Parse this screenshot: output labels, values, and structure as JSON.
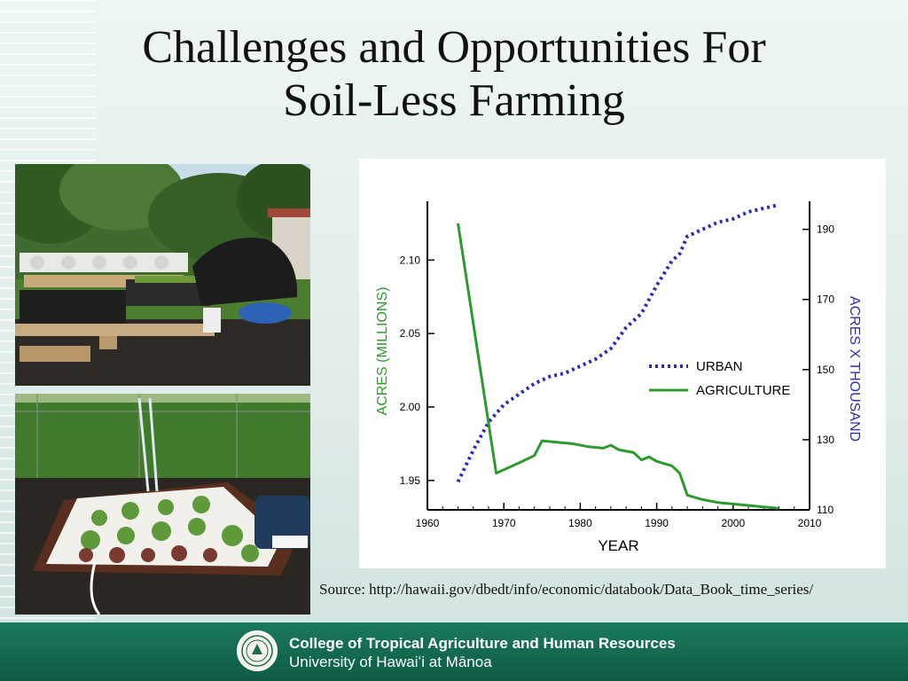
{
  "slide": {
    "title_line1": "Challenges and Opportunities For",
    "title_line2": "Soil-Less Farming",
    "source": "Source: http://hawaii.gov/dbedt/info/economic/databook/Data_Book_time_series/"
  },
  "footer": {
    "line1": "College of Tropical Agriculture and Human Resources",
    "line2": "University of Hawaiʻi at Mānoa"
  },
  "chart_data": {
    "type": "line",
    "title": "",
    "xlabel": "YEAR",
    "ylabel_left": "ACRES (MILLIONS)",
    "ylabel_right": "ACRES X THOUSAND",
    "xlim": [
      1960,
      2010
    ],
    "ylim_left": [
      1.93,
      2.14
    ],
    "ylim_right": [
      110,
      198
    ],
    "x_ticks": [
      1960,
      1970,
      1980,
      1990,
      2000,
      2010
    ],
    "y_ticks_left": [
      1.95,
      2.0,
      2.05,
      2.1
    ],
    "y_ticks_left_labels": [
      "1.95",
      "2.00",
      "2.05",
      "2.10"
    ],
    "y_ticks_right": [
      110,
      130,
      150,
      170,
      190
    ],
    "legend_position": "middle-right",
    "series": [
      {
        "name": "URBAN",
        "axis": "right",
        "color": "#2b2fb0",
        "style": "dotted",
        "x": [
          1964,
          1966,
          1968,
          1970,
          1972,
          1974,
          1976,
          1978,
          1980,
          1982,
          1984,
          1986,
          1988,
          1990,
          1992,
          1993,
          1994,
          1996,
          1998,
          2000,
          2002,
          2004,
          2006
        ],
        "y": [
          118,
          127,
          135,
          140,
          143,
          146,
          148,
          149,
          151,
          153,
          156,
          162,
          166,
          174,
          181,
          183,
          188,
          190,
          192,
          193,
          195,
          196,
          197
        ]
      },
      {
        "name": "AGRICULTURE",
        "axis": "left",
        "color": "#2d9a2d",
        "style": "solid",
        "x": [
          1964,
          1969,
          1972,
          1974,
          1975,
          1977,
          1979,
          1981,
          1983,
          1984,
          1985,
          1987,
          1988,
          1989,
          1990,
          1992,
          1993,
          1994,
          1996,
          1998,
          2000,
          2002,
          2004,
          2006
        ],
        "y": [
          2.125,
          1.955,
          1.962,
          1.967,
          1.977,
          1.976,
          1.975,
          1.973,
          1.972,
          1.974,
          1.971,
          1.969,
          1.964,
          1.966,
          1.963,
          1.96,
          1.955,
          1.94,
          1.937,
          1.935,
          1.934,
          1.933,
          1.932,
          1.931
        ]
      }
    ]
  }
}
